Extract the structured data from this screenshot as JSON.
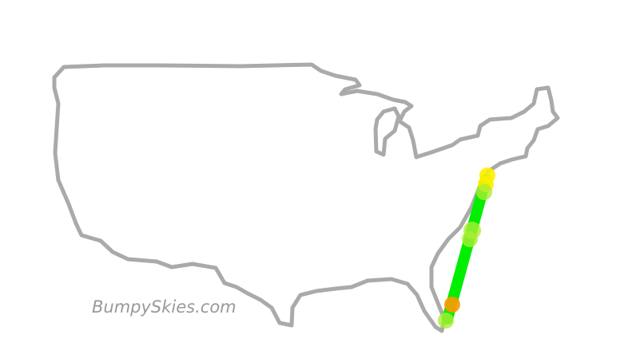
{
  "watermark": "BumpySkies.com"
}
